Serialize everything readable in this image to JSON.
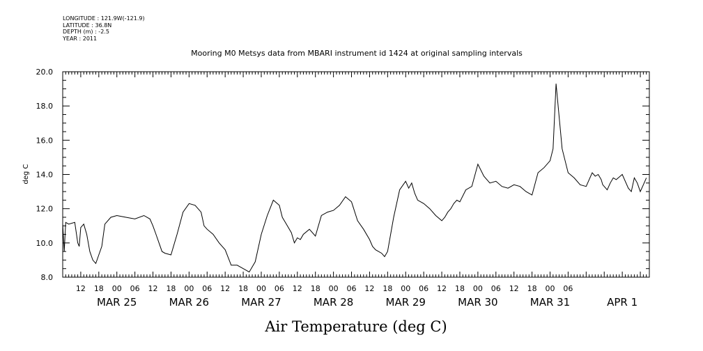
{
  "metadata": {
    "longitude": "LONGITUDE : 121.9W(-121.9)",
    "latitude": "LATITUDE : 36.8N",
    "depth": "DEPTH (m) : -2.5",
    "year": "YEAR : 2011"
  },
  "chart_data": {
    "type": "line",
    "title": "Mooring M0 Metsys data from MBARI instrument id 1424 at original sampling intervals",
    "xlabel": "Air Temperature (deg C)",
    "ylabel": "deg C",
    "ylim": [
      8.0,
      20.0
    ],
    "yticks": [
      "8.0",
      "10.0",
      "12.0",
      "14.0",
      "16.0",
      "18.0",
      "20.0"
    ],
    "xlim": [
      "2011-03-24T06:00",
      "2011-04-01T09:00"
    ],
    "hour_ticks": [
      {
        "t": "2011-03-24T12:00",
        "label": "12"
      },
      {
        "t": "2011-03-24T18:00",
        "label": "18"
      },
      {
        "t": "2011-03-25T00:00",
        "label": "00"
      },
      {
        "t": "2011-03-25T06:00",
        "label": "06"
      },
      {
        "t": "2011-03-25T12:00",
        "label": "12"
      },
      {
        "t": "2011-03-25T18:00",
        "label": "18"
      },
      {
        "t": "2011-03-26T00:00",
        "label": "00"
      },
      {
        "t": "2011-03-26T06:00",
        "label": "06"
      },
      {
        "t": "2011-03-26T12:00",
        "label": "12"
      },
      {
        "t": "2011-03-26T18:00",
        "label": "18"
      },
      {
        "t": "2011-03-27T00:00",
        "label": "00"
      },
      {
        "t": "2011-03-27T06:00",
        "label": "06"
      },
      {
        "t": "2011-03-27T12:00",
        "label": "12"
      },
      {
        "t": "2011-03-27T18:00",
        "label": "18"
      },
      {
        "t": "2011-03-28T00:00",
        "label": "00"
      },
      {
        "t": "2011-03-28T06:00",
        "label": "06"
      },
      {
        "t": "2011-03-28T12:00",
        "label": "12"
      },
      {
        "t": "2011-03-28T18:00",
        "label": "18"
      },
      {
        "t": "2011-03-29T00:00",
        "label": "00"
      },
      {
        "t": "2011-03-29T06:00",
        "label": "06"
      },
      {
        "t": "2011-03-29T12:00",
        "label": "12"
      },
      {
        "t": "2011-03-29T18:00",
        "label": "18"
      },
      {
        "t": "2011-03-30T00:00",
        "label": "00"
      },
      {
        "t": "2011-03-30T06:00",
        "label": "06"
      },
      {
        "t": "2011-03-30T12:00",
        "label": "12"
      },
      {
        "t": "2011-03-30T18:00",
        "label": "18"
      },
      {
        "t": "2011-03-31T00:00",
        "label": "00"
      },
      {
        "t": "2011-03-31T06:00",
        "label": "06"
      }
    ],
    "date_labels": [
      {
        "t": "2011-03-25T00:00",
        "label": "MAR 25"
      },
      {
        "t": "2011-03-26T00:00",
        "label": "MAR 26"
      },
      {
        "t": "2011-03-27T00:00",
        "label": "MAR 27"
      },
      {
        "t": "2011-03-28T00:00",
        "label": "MAR 28"
      },
      {
        "t": "2011-03-29T00:00",
        "label": "MAR 29"
      },
      {
        "t": "2011-03-30T00:00",
        "label": "MAR 30"
      },
      {
        "t": "2011-03-31T00:00",
        "label": "MAR 31"
      },
      {
        "t": "2011-04-01T00:00",
        "label": "APR 1"
      }
    ],
    "series": [
      {
        "line_color": "#000000",
        "x": [
          "2011-03-24T06:00",
          "2011-03-24T06:30",
          "2011-03-24T07:00",
          "2011-03-24T08:00",
          "2011-03-24T10:00",
          "2011-03-24T11:00",
          "2011-03-24T11:30",
          "2011-03-24T12:00",
          "2011-03-24T13:00",
          "2011-03-24T14:00",
          "2011-03-24T15:00",
          "2011-03-24T16:00",
          "2011-03-24T17:00",
          "2011-03-24T18:00",
          "2011-03-24T19:00",
          "2011-03-24T20:00",
          "2011-03-24T22:00",
          "2011-03-25T00:00",
          "2011-03-25T03:00",
          "2011-03-25T06:00",
          "2011-03-25T09:00",
          "2011-03-25T11:00",
          "2011-03-25T12:00",
          "2011-03-25T13:00",
          "2011-03-25T14:00",
          "2011-03-25T15:00",
          "2011-03-25T16:00",
          "2011-03-25T18:00",
          "2011-03-25T20:00",
          "2011-03-25T22:00",
          "2011-03-26T00:00",
          "2011-03-26T02:00",
          "2011-03-26T04:00",
          "2011-03-26T05:00",
          "2011-03-26T06:00",
          "2011-03-26T08:00",
          "2011-03-26T10:00",
          "2011-03-26T12:00",
          "2011-03-26T14:00",
          "2011-03-26T16:00",
          "2011-03-26T18:00",
          "2011-03-26T20:00",
          "2011-03-26T22:00",
          "2011-03-27T00:00",
          "2011-03-27T02:00",
          "2011-03-27T04:00",
          "2011-03-27T06:00",
          "2011-03-27T07:00",
          "2011-03-27T08:00",
          "2011-03-27T10:00",
          "2011-03-27T11:00",
          "2011-03-27T12:00",
          "2011-03-27T13:00",
          "2011-03-27T14:00",
          "2011-03-27T16:00",
          "2011-03-27T18:00",
          "2011-03-27T20:00",
          "2011-03-27T22:00",
          "2011-03-28T00:00",
          "2011-03-28T02:00",
          "2011-03-28T04:00",
          "2011-03-28T06:00",
          "2011-03-28T08:00",
          "2011-03-28T10:00",
          "2011-03-28T12:00",
          "2011-03-28T13:00",
          "2011-03-28T14:00",
          "2011-03-28T16:00",
          "2011-03-28T17:00",
          "2011-03-28T18:00",
          "2011-03-28T20:00",
          "2011-03-28T22:00",
          "2011-03-29T00:00",
          "2011-03-29T01:00",
          "2011-03-29T02:00",
          "2011-03-29T03:00",
          "2011-03-29T04:00",
          "2011-03-29T06:00",
          "2011-03-29T08:00",
          "2011-03-29T10:00",
          "2011-03-29T12:00",
          "2011-03-29T13:00",
          "2011-03-29T14:00",
          "2011-03-29T15:00",
          "2011-03-29T16:00",
          "2011-03-29T17:00",
          "2011-03-29T18:00",
          "2011-03-29T20:00",
          "2011-03-29T22:00",
          "2011-03-30T00:00",
          "2011-03-30T02:00",
          "2011-03-30T04:00",
          "2011-03-30T06:00",
          "2011-03-30T08:00",
          "2011-03-30T10:00",
          "2011-03-30T12:00",
          "2011-03-30T14:00",
          "2011-03-30T16:00",
          "2011-03-30T18:00",
          "2011-03-30T20:00",
          "2011-03-30T22:00",
          "2011-03-31T00:00",
          "2011-03-31T01:00",
          "2011-03-31T02:00",
          "2011-03-31T04:00",
          "2011-03-31T06:00",
          "2011-03-31T08:00",
          "2011-03-31T10:00",
          "2011-03-31T12:00",
          "2011-03-31T13:00",
          "2011-03-31T14:00",
          "2011-03-31T15:00",
          "2011-03-31T16:00",
          "2011-03-31T17:00",
          "2011-03-31T17:30",
          "2011-03-31T18:00",
          "2011-03-31T18:30",
          "2011-03-31T19:00",
          "2011-03-31T20:00",
          "2011-03-31T21:00",
          "2011-03-31T22:00",
          "2011-04-01T00:00",
          "2011-04-01T02:00",
          "2011-04-01T03:00",
          "2011-04-01T04:00",
          "2011-04-01T05:00",
          "2011-04-01T06:00",
          "2011-04-01T07:00",
          "2011-04-01T08:00"
        ],
        "y": [
          11.1,
          9.5,
          11.2,
          11.1,
          11.2,
          10.0,
          9.8,
          10.9,
          11.1,
          10.5,
          9.5,
          9.0,
          8.8,
          9.3,
          9.8,
          11.1,
          11.5,
          11.6,
          11.5,
          11.4,
          11.6,
          11.4,
          11.0,
          10.5,
          10.0,
          9.5,
          9.4,
          9.3,
          10.5,
          11.8,
          12.3,
          12.2,
          11.8,
          11.0,
          10.8,
          10.5,
          10.0,
          9.6,
          8.7,
          8.7,
          8.5,
          8.3,
          8.9,
          10.5,
          11.6,
          12.5,
          12.2,
          11.5,
          11.2,
          10.6,
          10.0,
          10.3,
          10.2,
          10.5,
          10.8,
          10.4,
          11.6,
          11.8,
          11.9,
          12.2,
          12.7,
          12.4,
          11.3,
          10.8,
          10.2,
          9.8,
          9.6,
          9.4,
          9.2,
          9.5,
          11.5,
          13.1,
          13.6,
          13.2,
          13.5,
          12.9,
          12.5,
          12.3,
          12.0,
          11.6,
          11.3,
          11.5,
          11.8,
          12.0,
          12.3,
          12.5,
          12.4,
          13.1,
          13.3,
          14.6,
          13.9,
          13.5,
          13.6,
          13.3,
          13.2,
          13.4,
          13.3,
          13.0,
          12.8,
          14.1,
          14.4,
          14.8,
          15.5,
          19.3,
          15.5,
          14.1,
          13.8,
          13.4,
          13.3,
          13.7,
          14.1,
          13.9,
          14.0,
          13.7,
          13.4,
          13.3,
          13.2,
          13.1,
          13.5,
          13.8,
          13.7,
          14.0,
          13.2,
          13.0,
          13.8,
          13.5,
          13.0,
          13.4,
          13.8
        ]
      }
    ]
  }
}
